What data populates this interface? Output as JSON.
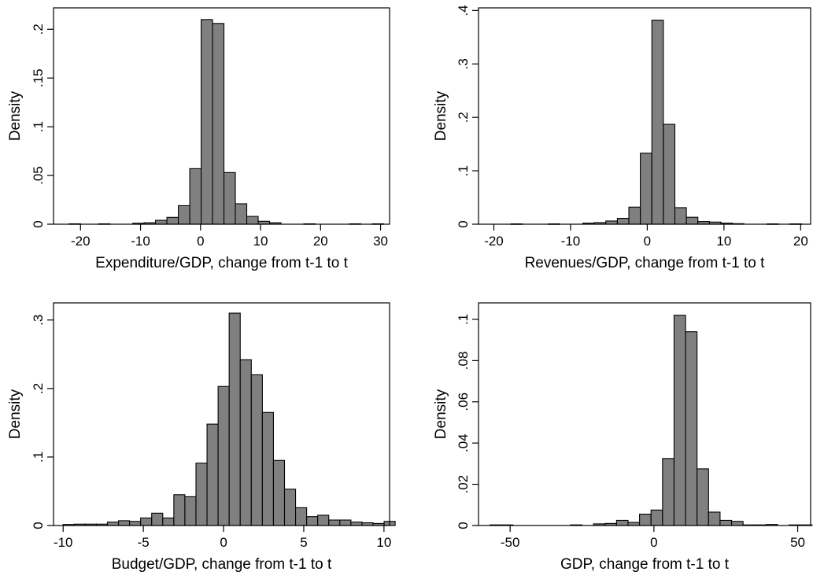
{
  "colors": {
    "bar_fill": "#808080",
    "bar_stroke": "#000000",
    "background": "#ffffff"
  },
  "chart_data": [
    {
      "type": "bar",
      "subtype": "histogram",
      "xlabel": "Expenditure/GDP, change from t-1 to t",
      "ylabel": "Density",
      "xlim": [
        -24.5,
        31.5
      ],
      "ylim": [
        0,
        0.222
      ],
      "xticks": [
        -20,
        -10,
        0,
        10,
        20,
        30
      ],
      "xtick_labels": [
        "-20",
        "-10",
        "0",
        "10",
        "20",
        "30"
      ],
      "yticks": [
        0,
        0.05,
        0.1,
        0.15,
        0.2
      ],
      "ytick_labels": [
        "0",
        ".05",
        ".1",
        ".15",
        ".2"
      ],
      "bins": [
        {
          "x0": -21.9,
          "x1": -20.0,
          "density": 0.0004
        },
        {
          "x0": -17.0,
          "x1": -15.1,
          "density": 0.0004
        },
        {
          "x0": -11.3,
          "x1": -9.4,
          "density": 0.001
        },
        {
          "x0": -9.4,
          "x1": -7.5,
          "density": 0.0015
        },
        {
          "x0": -7.5,
          "x1": -5.6,
          "density": 0.004
        },
        {
          "x0": -5.6,
          "x1": -3.7,
          "density": 0.007
        },
        {
          "x0": -3.7,
          "x1": -1.8,
          "density": 0.019
        },
        {
          "x0": -1.8,
          "x1": 0.1,
          "density": 0.057
        },
        {
          "x0": 0.1,
          "x1": 2.0,
          "density": 0.21
        },
        {
          "x0": 2.0,
          "x1": 3.9,
          "density": 0.206
        },
        {
          "x0": 3.9,
          "x1": 5.8,
          "density": 0.053
        },
        {
          "x0": 5.8,
          "x1": 7.7,
          "density": 0.021
        },
        {
          "x0": 7.7,
          "x1": 9.6,
          "density": 0.008
        },
        {
          "x0": 9.6,
          "x1": 11.5,
          "density": 0.003
        },
        {
          "x0": 11.5,
          "x1": 13.4,
          "density": 0.0015
        },
        {
          "x0": 17.2,
          "x1": 19.1,
          "density": 0.0004
        },
        {
          "x0": 24.8,
          "x1": 26.7,
          "density": 0.0004
        },
        {
          "x0": 28.6,
          "x1": 30.5,
          "density": 0.0004
        }
      ]
    },
    {
      "type": "bar",
      "subtype": "histogram",
      "xlabel": "Revenues/GDP, change from t-1 to t",
      "ylabel": "Density",
      "xlim": [
        -22.0,
        21.3
      ],
      "ylim": [
        0,
        0.405
      ],
      "xticks": [
        -20,
        -10,
        0,
        10,
        20
      ],
      "xtick_labels": [
        "-20",
        "-10",
        "0",
        "10",
        "20"
      ],
      "yticks": [
        0,
        0.1,
        0.2,
        0.3,
        0.4
      ],
      "ytick_labels": [
        "0",
        ".1",
        ".2",
        ".3",
        ".4"
      ],
      "bins": [
        {
          "x0": -17.8,
          "x1": -16.3,
          "density": 0.0006
        },
        {
          "x0": -12.9,
          "x1": -11.4,
          "density": 0.0006
        },
        {
          "x0": -8.4,
          "x1": -6.9,
          "density": 0.002
        },
        {
          "x0": -6.9,
          "x1": -5.4,
          "density": 0.003
        },
        {
          "x0": -5.4,
          "x1": -3.9,
          "density": 0.006
        },
        {
          "x0": -3.9,
          "x1": -2.4,
          "density": 0.011
        },
        {
          "x0": -2.4,
          "x1": -0.9,
          "density": 0.032
        },
        {
          "x0": -0.9,
          "x1": 0.6,
          "density": 0.133
        },
        {
          "x0": 0.6,
          "x1": 2.1,
          "density": 0.382
        },
        {
          "x0": 2.1,
          "x1": 3.6,
          "density": 0.187
        },
        {
          "x0": 3.6,
          "x1": 5.1,
          "density": 0.031
        },
        {
          "x0": 5.1,
          "x1": 6.6,
          "density": 0.013
        },
        {
          "x0": 6.6,
          "x1": 8.1,
          "density": 0.005
        },
        {
          "x0": 8.1,
          "x1": 9.6,
          "density": 0.004
        },
        {
          "x0": 9.6,
          "x1": 11.1,
          "density": 0.002
        },
        {
          "x0": 11.1,
          "x1": 12.6,
          "density": 0.001
        },
        {
          "x0": 15.6,
          "x1": 17.1,
          "density": 0.0006
        },
        {
          "x0": 18.6,
          "x1": 20.1,
          "density": 0.0006
        }
      ]
    },
    {
      "type": "bar",
      "subtype": "histogram",
      "xlabel": "Budget/GDP, change from t-1 to t",
      "ylabel": "Density",
      "xlim": [
        -10.6,
        10.35
      ],
      "ylim": [
        0,
        0.325
      ],
      "xticks": [
        -10,
        -5,
        0,
        5,
        10
      ],
      "xtick_labels": [
        "-10",
        "-5",
        "0",
        "5",
        "10"
      ],
      "yticks": [
        0,
        0.1,
        0.2,
        0.3
      ],
      "ytick_labels": [
        "0",
        ".1",
        ".2",
        ".3"
      ],
      "bins": [
        {
          "x0": -10.0,
          "x1": -9.31,
          "density": 0.0015
        },
        {
          "x0": -9.31,
          "x1": -8.62,
          "density": 0.002
        },
        {
          "x0": -8.62,
          "x1": -7.93,
          "density": 0.002
        },
        {
          "x0": -7.93,
          "x1": -7.24,
          "density": 0.002
        },
        {
          "x0": -7.24,
          "x1": -6.55,
          "density": 0.005
        },
        {
          "x0": -6.55,
          "x1": -5.86,
          "density": 0.007
        },
        {
          "x0": -5.86,
          "x1": -5.17,
          "density": 0.006
        },
        {
          "x0": -5.17,
          "x1": -4.48,
          "density": 0.011
        },
        {
          "x0": -4.48,
          "x1": -3.79,
          "density": 0.018
        },
        {
          "x0": -3.79,
          "x1": -3.1,
          "density": 0.011
        },
        {
          "x0": -3.1,
          "x1": -2.41,
          "density": 0.045
        },
        {
          "x0": -2.41,
          "x1": -1.72,
          "density": 0.042
        },
        {
          "x0": -1.72,
          "x1": -1.03,
          "density": 0.091
        },
        {
          "x0": -1.03,
          "x1": -0.34,
          "density": 0.148
        },
        {
          "x0": -0.34,
          "x1": 0.35,
          "density": 0.203
        },
        {
          "x0": 0.35,
          "x1": 1.04,
          "density": 0.31
        },
        {
          "x0": 1.04,
          "x1": 1.73,
          "density": 0.242
        },
        {
          "x0": 1.73,
          "x1": 2.42,
          "density": 0.22
        },
        {
          "x0": 2.42,
          "x1": 3.11,
          "density": 0.165
        },
        {
          "x0": 3.11,
          "x1": 3.8,
          "density": 0.095
        },
        {
          "x0": 3.8,
          "x1": 4.49,
          "density": 0.053
        },
        {
          "x0": 4.49,
          "x1": 5.18,
          "density": 0.026
        },
        {
          "x0": 5.18,
          "x1": 5.87,
          "density": 0.013
        },
        {
          "x0": 5.87,
          "x1": 6.56,
          "density": 0.015
        },
        {
          "x0": 6.56,
          "x1": 7.25,
          "density": 0.008
        },
        {
          "x0": 7.25,
          "x1": 7.94,
          "density": 0.008
        },
        {
          "x0": 7.94,
          "x1": 8.63,
          "density": 0.005
        },
        {
          "x0": 8.63,
          "x1": 9.32,
          "density": 0.004
        },
        {
          "x0": 9.32,
          "x1": 10.01,
          "density": 0.003
        },
        {
          "x0": 10.01,
          "x1": 10.7,
          "density": 0.006
        }
      ]
    },
    {
      "type": "bar",
      "subtype": "histogram",
      "xlabel": "GDP, change from t-1 to t",
      "ylabel": "Density",
      "xlim": [
        -61.0,
        54.5
      ],
      "ylim": [
        0,
        0.108
      ],
      "xticks": [
        -50,
        0,
        50
      ],
      "xtick_labels": [
        "-50",
        "0",
        "50"
      ],
      "yticks": [
        0,
        0.02,
        0.04,
        0.06,
        0.08,
        0.1
      ],
      "ytick_labels": [
        "0",
        ".02",
        ".04",
        ".06",
        ".08",
        ".1"
      ],
      "bins": [
        {
          "x0": -57.0,
          "x1": -53.0,
          "density": 0.0003
        },
        {
          "x0": -53.0,
          "x1": -49.0,
          "density": 0.0003
        },
        {
          "x0": -29.0,
          "x1": -25.0,
          "density": 0.0003
        },
        {
          "x0": -21.0,
          "x1": -17.0,
          "density": 0.0008
        },
        {
          "x0": -17.0,
          "x1": -13.0,
          "density": 0.001
        },
        {
          "x0": -13.0,
          "x1": -9.0,
          "density": 0.0025
        },
        {
          "x0": -9.0,
          "x1": -5.0,
          "density": 0.0015
        },
        {
          "x0": -5.0,
          "x1": -1.0,
          "density": 0.0055
        },
        {
          "x0": -1.0,
          "x1": 3.0,
          "density": 0.0075
        },
        {
          "x0": 3.0,
          "x1": 7.0,
          "density": 0.0325
        },
        {
          "x0": 7.0,
          "x1": 11.0,
          "density": 0.102
        },
        {
          "x0": 11.0,
          "x1": 15.0,
          "density": 0.094
        },
        {
          "x0": 15.0,
          "x1": 19.0,
          "density": 0.0275
        },
        {
          "x0": 19.0,
          "x1": 23.0,
          "density": 0.0065
        },
        {
          "x0": 23.0,
          "x1": 27.0,
          "density": 0.0025
        },
        {
          "x0": 27.0,
          "x1": 31.0,
          "density": 0.002
        },
        {
          "x0": 31.0,
          "x1": 35.0,
          "density": 0.0003
        },
        {
          "x0": 35.0,
          "x1": 39.0,
          "density": 0.0003
        },
        {
          "x0": 39.0,
          "x1": 43.0,
          "density": 0.0005
        },
        {
          "x0": 47.0,
          "x1": 51.0,
          "density": 0.0003
        },
        {
          "x0": 51.0,
          "x1": 55.0,
          "density": 0.0003
        }
      ]
    }
  ]
}
